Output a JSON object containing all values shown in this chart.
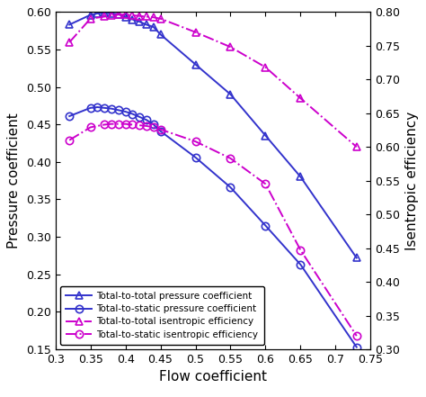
{
  "tt_pressure_coeff_x": [
    0.32,
    0.35,
    0.36,
    0.37,
    0.38,
    0.39,
    0.4,
    0.41,
    0.42,
    0.43,
    0.44,
    0.45,
    0.5,
    0.55,
    0.6,
    0.65,
    0.73
  ],
  "tt_pressure_coeff_y": [
    0.583,
    0.596,
    0.598,
    0.599,
    0.598,
    0.597,
    0.593,
    0.59,
    0.587,
    0.583,
    0.58,
    0.57,
    0.53,
    0.49,
    0.435,
    0.38,
    0.272
  ],
  "ts_pressure_coeff_x": [
    0.32,
    0.35,
    0.36,
    0.37,
    0.38,
    0.39,
    0.4,
    0.41,
    0.42,
    0.43,
    0.44,
    0.45,
    0.5,
    0.55,
    0.6,
    0.65,
    0.73
  ],
  "ts_pressure_coeff_y": [
    0.461,
    0.472,
    0.473,
    0.472,
    0.471,
    0.469,
    0.467,
    0.464,
    0.46,
    0.456,
    0.45,
    0.441,
    0.406,
    0.366,
    0.315,
    0.263,
    0.153
  ],
  "tt_isentropic_x": [
    0.32,
    0.35,
    0.37,
    0.38,
    0.39,
    0.4,
    0.41,
    0.42,
    0.43,
    0.44,
    0.45,
    0.5,
    0.55,
    0.6,
    0.65,
    0.73
  ],
  "tt_isentropic_y": [
    0.755,
    0.79,
    0.793,
    0.795,
    0.796,
    0.796,
    0.795,
    0.794,
    0.793,
    0.792,
    0.79,
    0.77,
    0.748,
    0.718,
    0.672,
    0.6
  ],
  "ts_isentropic_x": [
    0.32,
    0.35,
    0.37,
    0.38,
    0.39,
    0.4,
    0.41,
    0.42,
    0.43,
    0.44,
    0.45,
    0.5,
    0.55,
    0.6,
    0.65,
    0.73
  ],
  "ts_isentropic_y": [
    0.61,
    0.629,
    0.633,
    0.634,
    0.634,
    0.634,
    0.633,
    0.632,
    0.631,
    0.629,
    0.626,
    0.608,
    0.583,
    0.545,
    0.447,
    0.32
  ],
  "xlabel": "Flow coefficient",
  "ylabel_left": "Pressure coefficient",
  "ylabel_right": "Isentropic efficiency",
  "xlim": [
    0.3,
    0.75
  ],
  "ylim_left": [
    0.15,
    0.6
  ],
  "ylim_right": [
    0.3,
    0.8
  ],
  "xticks": [
    0.3,
    0.35,
    0.4,
    0.45,
    0.5,
    0.55,
    0.6,
    0.65,
    0.7,
    0.75
  ],
  "yticks_left": [
    0.15,
    0.2,
    0.25,
    0.3,
    0.35,
    0.4,
    0.45,
    0.5,
    0.55,
    0.6
  ],
  "yticks_right": [
    0.3,
    0.35,
    0.4,
    0.45,
    0.5,
    0.55,
    0.6,
    0.65,
    0.7,
    0.75,
    0.8
  ],
  "color_blue": "#3333cc",
  "color_magenta": "#cc00cc",
  "legend_labels": [
    "Total-to-total pressure coefficient",
    "Total-to-static pressure coefficient",
    "Total-to-total isentropic efficiency",
    "Total-to-static isentropic efficiency"
  ],
  "figsize": [
    4.74,
    4.41
  ],
  "dpi": 100,
  "background_color": "#ffffff"
}
